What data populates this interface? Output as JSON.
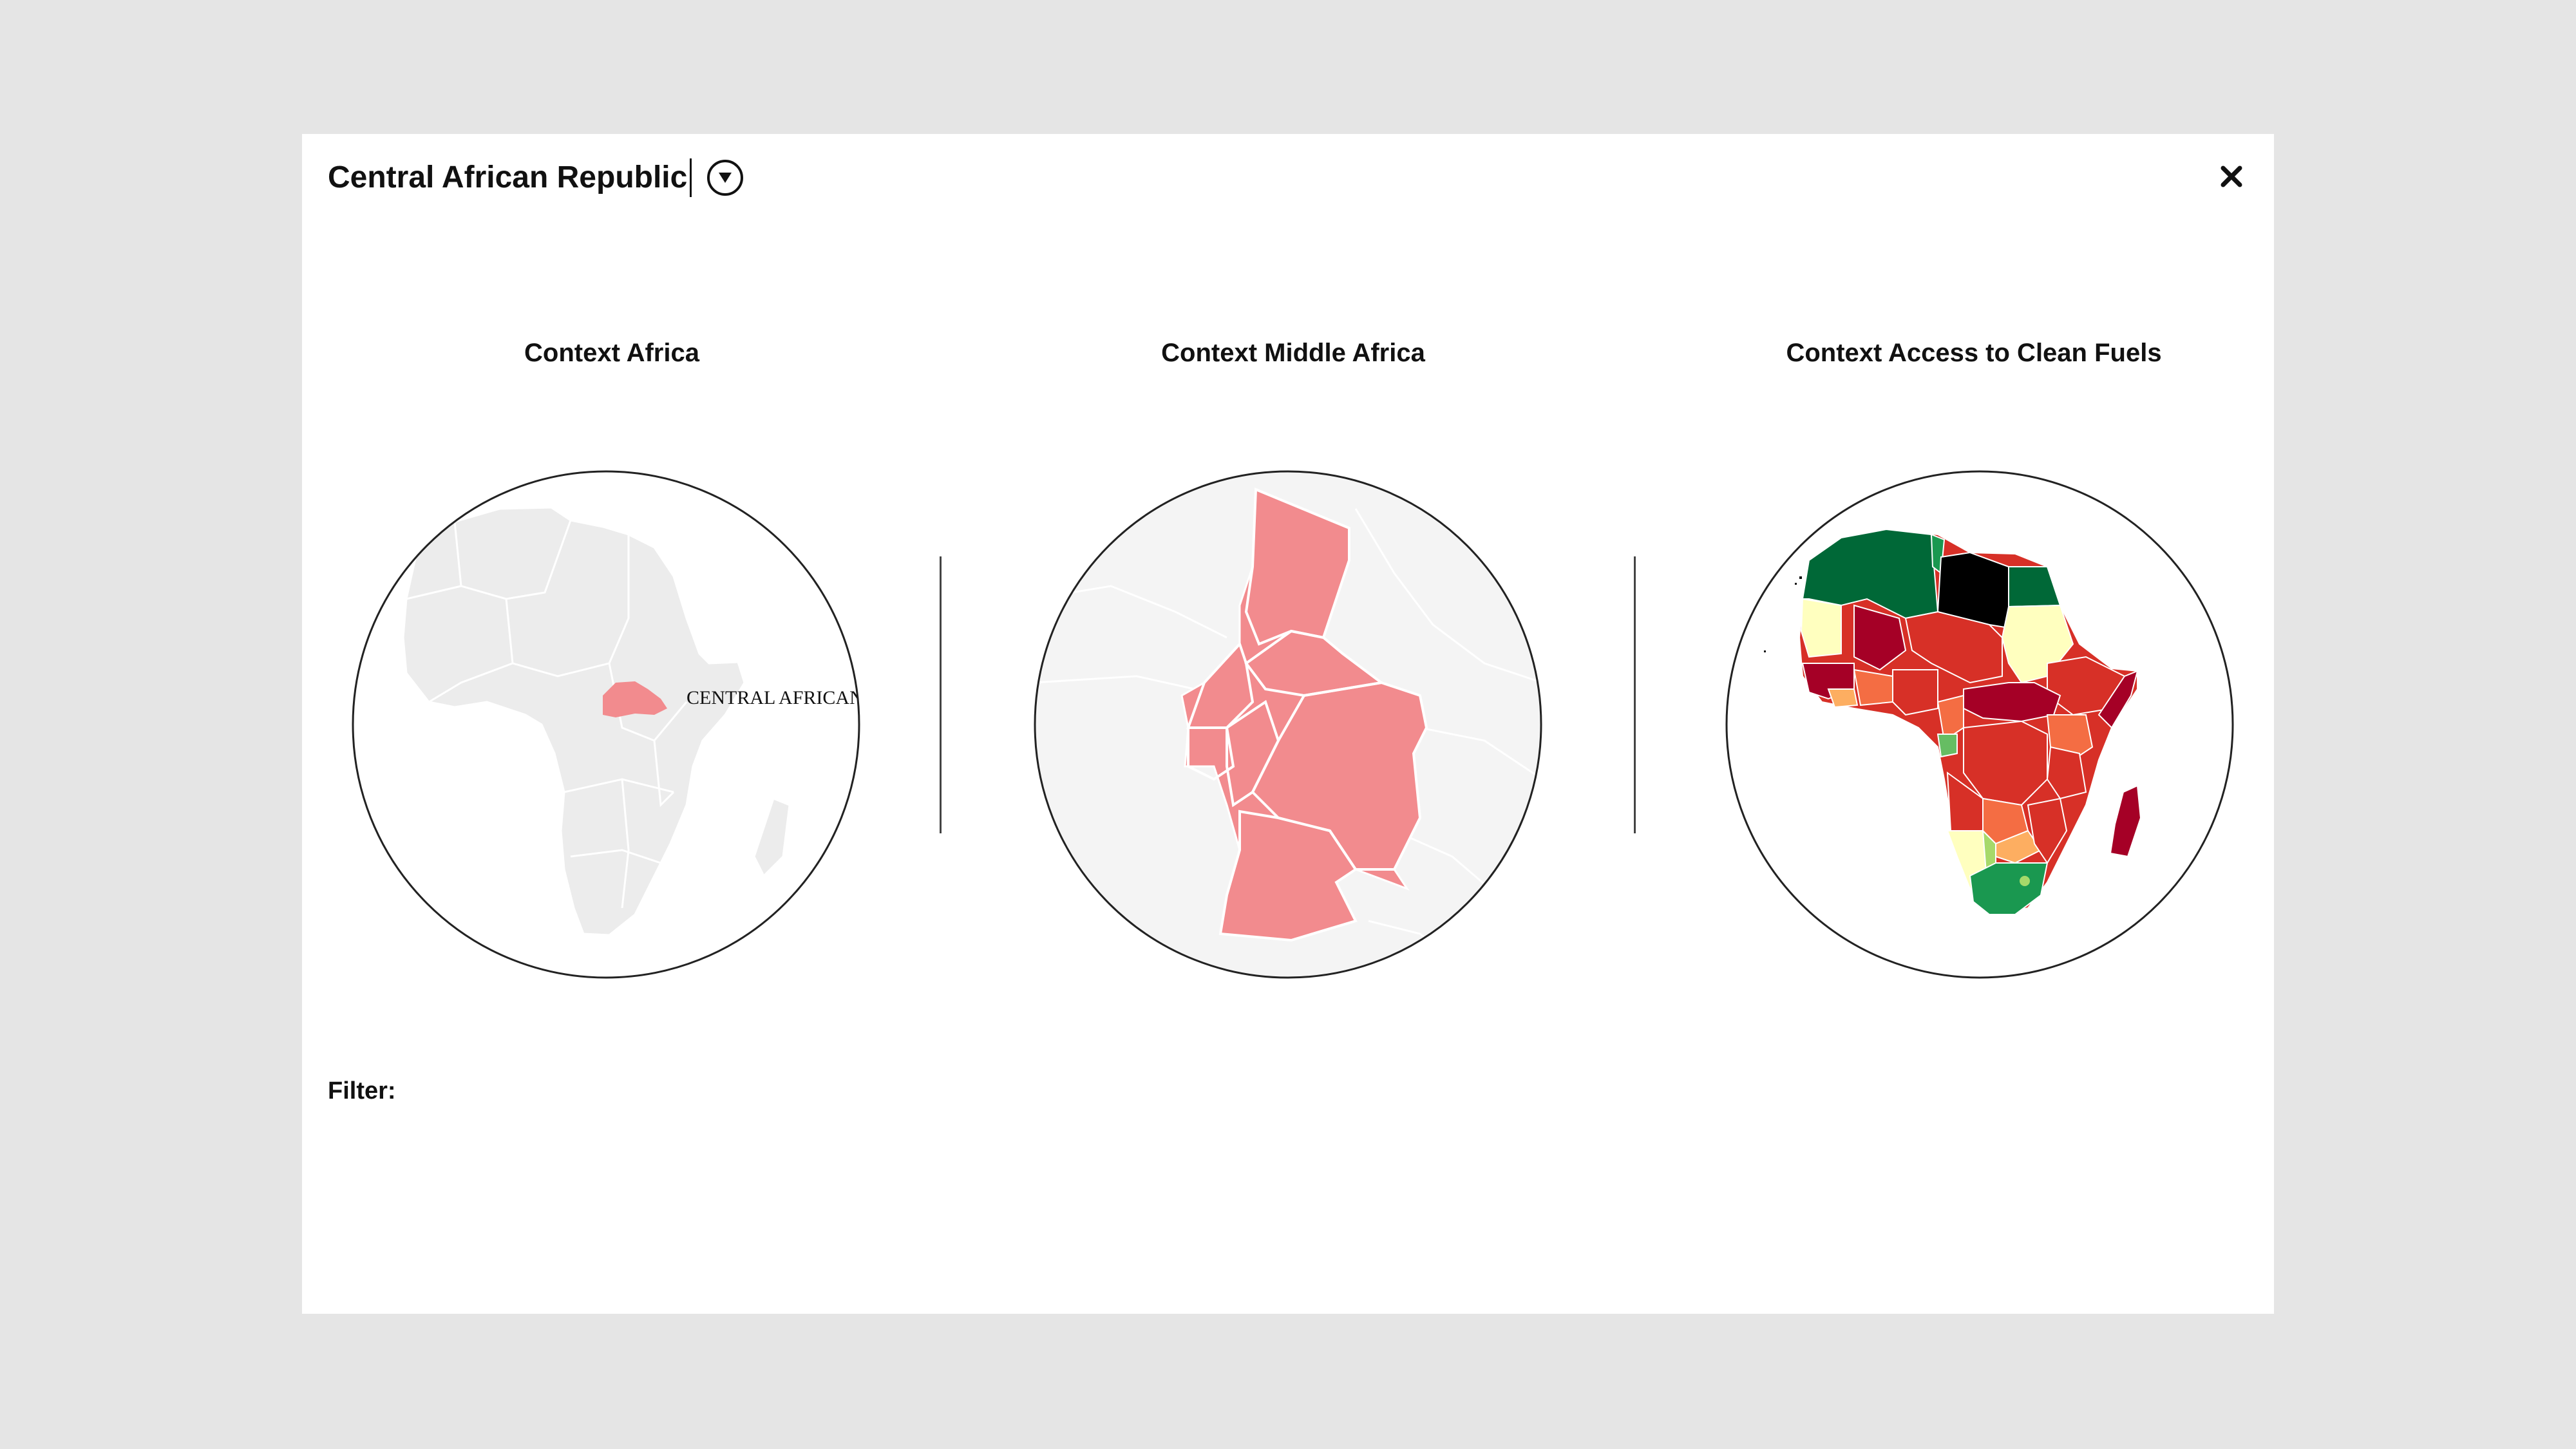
{
  "header": {
    "country_title": "Central African Republic",
    "dropdown_icon": "chevron-down-circle-icon",
    "close_icon": "close-icon"
  },
  "panels": [
    {
      "title": "Context Africa",
      "map_label": "CENTRAL AFRICAN"
    },
    {
      "title": "Context Middle Africa"
    },
    {
      "title": "Context Access to Clean Fuels"
    }
  ],
  "filter": {
    "label": "Filter:"
  },
  "colors": {
    "highlight": "#f28b8e",
    "land": "#ececec",
    "background_land": "#f4f4f4",
    "choropleth": [
      "#006837",
      "#1a9850",
      "#a6d96a",
      "#ffffbf",
      "#fdae61",
      "#f46d43",
      "#d73027",
      "#a50026",
      "#000000"
    ]
  }
}
